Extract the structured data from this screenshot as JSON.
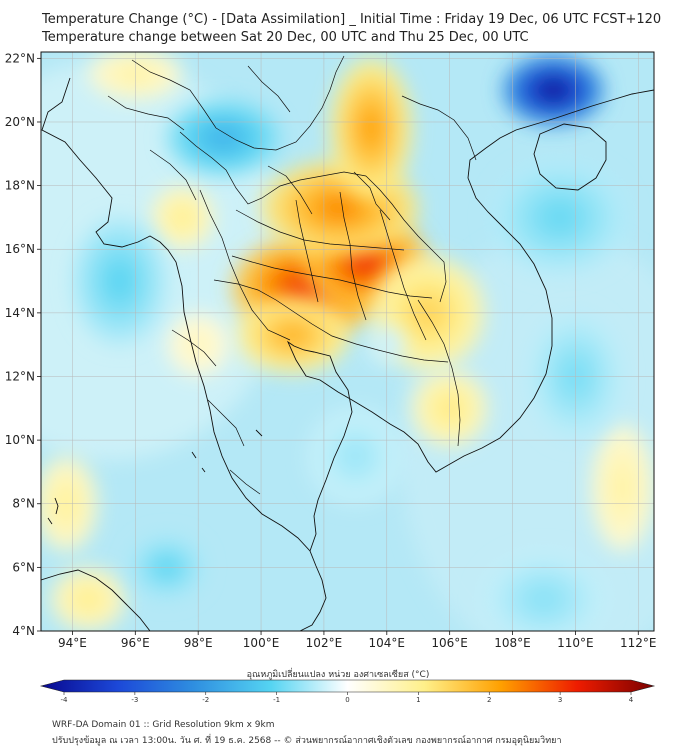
{
  "title": {
    "line1": "Temperature Change (°C) - [Data Assimilation] _ Initial Time : Friday 19 Dec, 06 UTC FCST+120",
    "line2": "Temperature change between Sat 20 Dec, 00 UTC and Thu 25 Dec, 00 UTC"
  },
  "map": {
    "lon_range": [
      93,
      112.5
    ],
    "lat_range": [
      4,
      22.2
    ],
    "lat_ticks": [
      {
        "value": 4,
        "label": "4°N"
      },
      {
        "value": 6,
        "label": "6°N"
      },
      {
        "value": 8,
        "label": "8°N"
      },
      {
        "value": 10,
        "label": "10°N"
      },
      {
        "value": 12,
        "label": "12°N"
      },
      {
        "value": 14,
        "label": "14°N"
      },
      {
        "value": 16,
        "label": "16°N"
      },
      {
        "value": 18,
        "label": "18°N"
      },
      {
        "value": 20,
        "label": "20°N"
      },
      {
        "value": 22,
        "label": "22°N"
      }
    ],
    "lon_ticks": [
      {
        "value": 94,
        "label": "94°E"
      },
      {
        "value": 96,
        "label": "96°E"
      },
      {
        "value": 98,
        "label": "98°E"
      },
      {
        "value": 100,
        "label": "100°E"
      },
      {
        "value": 102,
        "label": "102°E"
      },
      {
        "value": 104,
        "label": "104°E"
      },
      {
        "value": 106,
        "label": "106°E"
      },
      {
        "value": 108,
        "label": "108°E"
      },
      {
        "value": 110,
        "label": "110°E"
      },
      {
        "value": 112,
        "label": "112°E"
      }
    ],
    "anomalies": [
      {
        "lon": 101.5,
        "lat": 14.8,
        "value": 3.0,
        "rlon": 2.4,
        "rlat": 1.6
      },
      {
        "lon": 103.3,
        "lat": 15.6,
        "value": 3.0,
        "rlon": 2.0,
        "rlat": 1.5
      },
      {
        "lon": 102.5,
        "lat": 17.3,
        "value": 2.2,
        "rlon": 2.5,
        "rlat": 1.5
      },
      {
        "lon": 103.5,
        "lat": 19.8,
        "value": 2.0,
        "rlon": 1.3,
        "rlat": 2.2
      },
      {
        "lon": 101.0,
        "lat": 13.3,
        "value": 1.8,
        "rlon": 1.8,
        "rlat": 1.2
      },
      {
        "lon": 105.3,
        "lat": 14.0,
        "value": 1.4,
        "rlon": 1.8,
        "rlat": 1.8
      },
      {
        "lon": 106.0,
        "lat": 11.0,
        "value": 1.1,
        "rlon": 1.2,
        "rlat": 1.2
      },
      {
        "lon": 97.5,
        "lat": 17.0,
        "value": 1.0,
        "rlon": 1.0,
        "rlat": 1.0
      },
      {
        "lon": 96.0,
        "lat": 21.5,
        "value": 0.8,
        "rlon": 1.5,
        "rlat": 0.8
      },
      {
        "lon": 93.8,
        "lat": 8.0,
        "value": 0.9,
        "rlon": 1.0,
        "rlat": 1.5
      },
      {
        "lon": 94.5,
        "lat": 5.0,
        "value": 1.0,
        "rlon": 1.2,
        "rlat": 1.0
      },
      {
        "lon": 111.5,
        "lat": 8.5,
        "value": 0.8,
        "rlon": 1.0,
        "rlat": 2.0
      },
      {
        "lon": 98.0,
        "lat": 13.0,
        "value": 0.6,
        "rlon": 1.0,
        "rlat": 1.0
      },
      {
        "lon": 109.3,
        "lat": 21.0,
        "value": -4.0,
        "rlon": 1.6,
        "rlat": 1.1
      },
      {
        "lon": 98.8,
        "lat": 19.5,
        "value": -1.5,
        "rlon": 1.8,
        "rlat": 1.2
      },
      {
        "lon": 109.5,
        "lat": 17.0,
        "value": -0.9,
        "rlon": 2.2,
        "rlat": 1.8
      },
      {
        "lon": 95.5,
        "lat": 15.0,
        "value": -1.0,
        "rlon": 1.5,
        "rlat": 2.0
      },
      {
        "lon": 97.0,
        "lat": 6.0,
        "value": -1.0,
        "rlon": 1.2,
        "rlat": 1.0
      },
      {
        "lon": 110.0,
        "lat": 12.0,
        "value": -0.8,
        "rlon": 1.5,
        "rlat": 2.0
      },
      {
        "lon": 103.0,
        "lat": 9.5,
        "value": -0.6,
        "rlon": 1.5,
        "rlat": 1.5
      },
      {
        "lon": 104.0,
        "lat": 13.0,
        "value": -0.4,
        "rlon": 0.6,
        "rlat": 0.6
      },
      {
        "lon": 109.0,
        "lat": 5.0,
        "value": -0.7,
        "rlon": 2.0,
        "rlat": 1.5
      }
    ]
  },
  "colorbar": {
    "label": "อุณหภูมิเปลี่ยนแปลง หน่วย องศาเซลเซียส (°C)",
    "min": -4,
    "max": 4,
    "ticks": [
      {
        "value": -4,
        "label": "-4"
      },
      {
        "value": -3,
        "label": "-3"
      },
      {
        "value": -2,
        "label": "-2"
      },
      {
        "value": -1,
        "label": "-1"
      },
      {
        "value": 0,
        "label": "0"
      },
      {
        "value": 1,
        "label": "1"
      },
      {
        "value": 2,
        "label": "2"
      },
      {
        "value": 3,
        "label": "3"
      },
      {
        "value": 4,
        "label": "4"
      }
    ],
    "stops": [
      {
        "value": -4,
        "color": "#08088e"
      },
      {
        "value": -3,
        "color": "#1c48d8"
      },
      {
        "value": -2,
        "color": "#2f8fe0"
      },
      {
        "value": -1,
        "color": "#55d4f2"
      },
      {
        "value": 0,
        "color": "#ffffff"
      },
      {
        "value": 1,
        "color": "#fff08a"
      },
      {
        "value": 2,
        "color": "#ffa000"
      },
      {
        "value": 3,
        "color": "#ee1c00"
      },
      {
        "value": 4,
        "color": "#7a0000"
      }
    ]
  },
  "footer": {
    "line1": "WRF-DA Domain 01 :: Grid Resolution 9km x 9km",
    "line2": "ปรับปรุงข้อมูล ณ เวลา 13:00น. วัน ศ. ที่ 19 ธ.ค. 2568 -- © ส่วนพยากรณ์อากาศเชิงตัวเลข กองพยากรณ์อากาศ กรมอุตุนิยมวิทยา"
  }
}
